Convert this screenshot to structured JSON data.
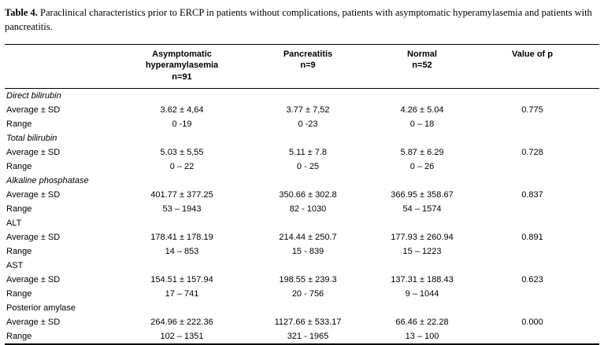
{
  "caption": {
    "label": "Table 4.",
    "text": "Paraclinical characteristics prior to ERCP in patients without complications, patients with asymptomatic hyperamylasemia and patients with pancreatitis."
  },
  "table": {
    "headers": [
      "Asymptomatic\nhyperamylasemia\nn=91",
      "Pancreatitis\nn=9",
      "Normal\nn=52",
      "Value of p"
    ],
    "row_labels": {
      "average": "Average ± SD",
      "range": "Range"
    },
    "groups": [
      {
        "name": "Direct bilirubin",
        "italic": true,
        "average": [
          "3.62 ± 4,64",
          "3.77 ± 7,52",
          "4.26 ± 5.04"
        ],
        "p": "0.775",
        "range": [
          "0 -19",
          "0 -23",
          "0 – 18"
        ]
      },
      {
        "name": "Total bilirubin",
        "italic": true,
        "average": [
          "5.03 ± 5,55",
          "5.11 ± 7.8",
          "5.87 ± 6.29"
        ],
        "p": "0.728",
        "range": [
          "0 – 22",
          "0 - 25",
          "0 – 26"
        ]
      },
      {
        "name": "Alkaline phosphatase",
        "italic": true,
        "average": [
          "401.77 ± 377.25",
          "350.66 ± 302.8",
          "366.95 ± 358.67"
        ],
        "p": "0.837",
        "range": [
          "53 – 1943",
          "82 - 1030",
          "54 – 1574"
        ]
      },
      {
        "name": "ALT",
        "italic": false,
        "average": [
          "178.41 ± 178.19",
          "214.44 ± 250.7",
          "177.93 ± 260.94"
        ],
        "p": "0.891",
        "range": [
          "14 – 853",
          "15 - 839",
          "15 – 1223"
        ]
      },
      {
        "name": "AST",
        "italic": false,
        "average": [
          "154.51 ± 157.94",
          "198.55 ± 239.3",
          "137.31 ± 188.43"
        ],
        "p": "0.623",
        "range": [
          "17 – 741",
          "20 - 756",
          "9 – 1044"
        ]
      },
      {
        "name": "Posterior amylase",
        "italic": false,
        "average": [
          "264.96 ± 222.36",
          "1127.66 ± 533.17",
          "66.46 ± 22.28"
        ],
        "p": "0.000",
        "range": [
          "102 – 1351",
          "321 - 1965",
          "13 – 100"
        ]
      }
    ]
  }
}
